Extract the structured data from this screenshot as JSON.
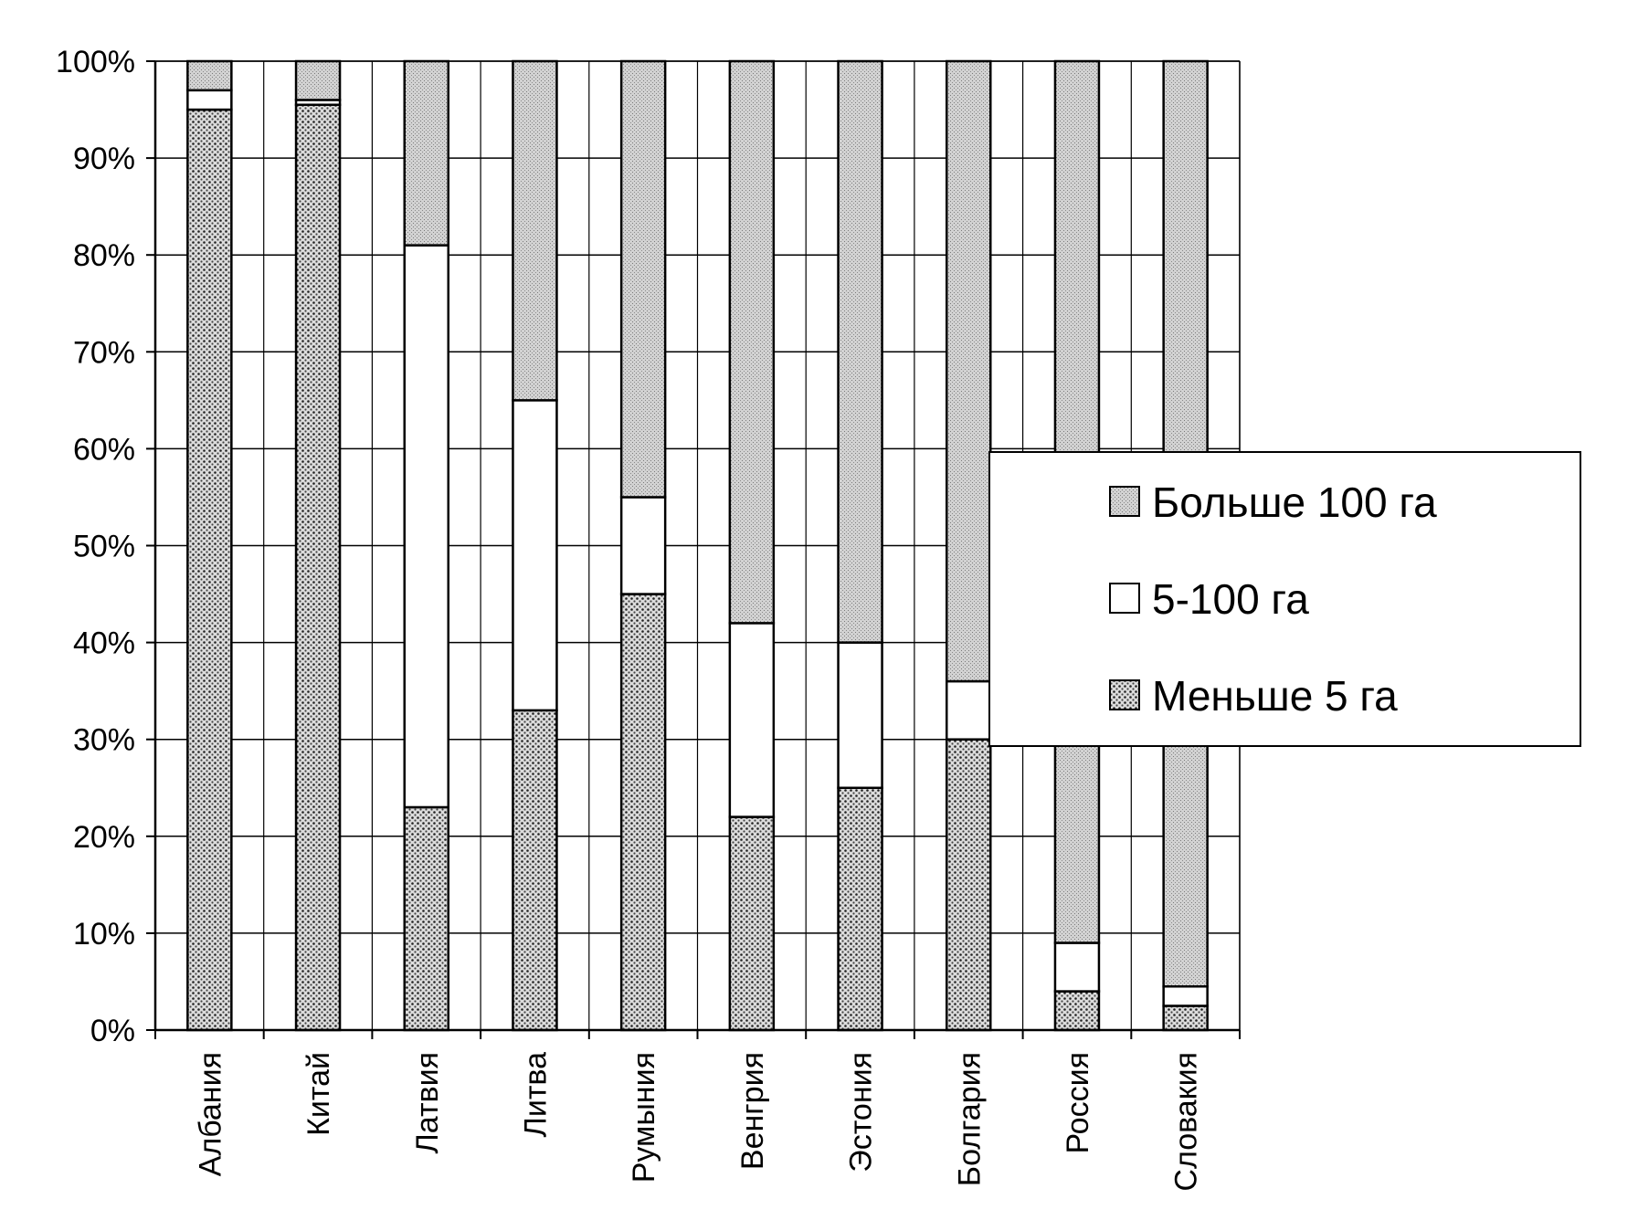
{
  "chart_data": {
    "type": "bar",
    "stacked": true,
    "percent": true,
    "categories": [
      "Албания",
      "Китай",
      "Латвия",
      "Литва",
      "Румыния",
      "Венгрия",
      "Эстония",
      "Болгария",
      "Россия",
      "Словакия"
    ],
    "series": [
      {
        "name": "Меньше 5 га",
        "values": [
          95,
          95.5,
          23,
          33,
          45,
          22,
          25,
          30,
          4,
          2.5
        ]
      },
      {
        "name": "5-100 га",
        "values": [
          2,
          0.5,
          58,
          32,
          10,
          20,
          15,
          6,
          5,
          2
        ]
      },
      {
        "name": "Больше 100 га",
        "values": [
          3,
          4,
          19,
          35,
          45,
          58,
          60,
          64,
          91,
          95.5
        ]
      }
    ],
    "yticks": [
      "0%",
      "10%",
      "20%",
      "30%",
      "40%",
      "50%",
      "60%",
      "70%",
      "80%",
      "90%",
      "100%"
    ],
    "ylim": [
      0,
      100
    ],
    "grid": true,
    "legend": {
      "placement": "right",
      "entries": [
        "Больше 100 га",
        "5-100 га",
        "Меньше 5 га"
      ]
    },
    "colors": {
      "Меньше 5 га": "#9a9a9a",
      "5-100 га": "#ffffff",
      "Больше 100 га": "#cfcfcf"
    }
  }
}
